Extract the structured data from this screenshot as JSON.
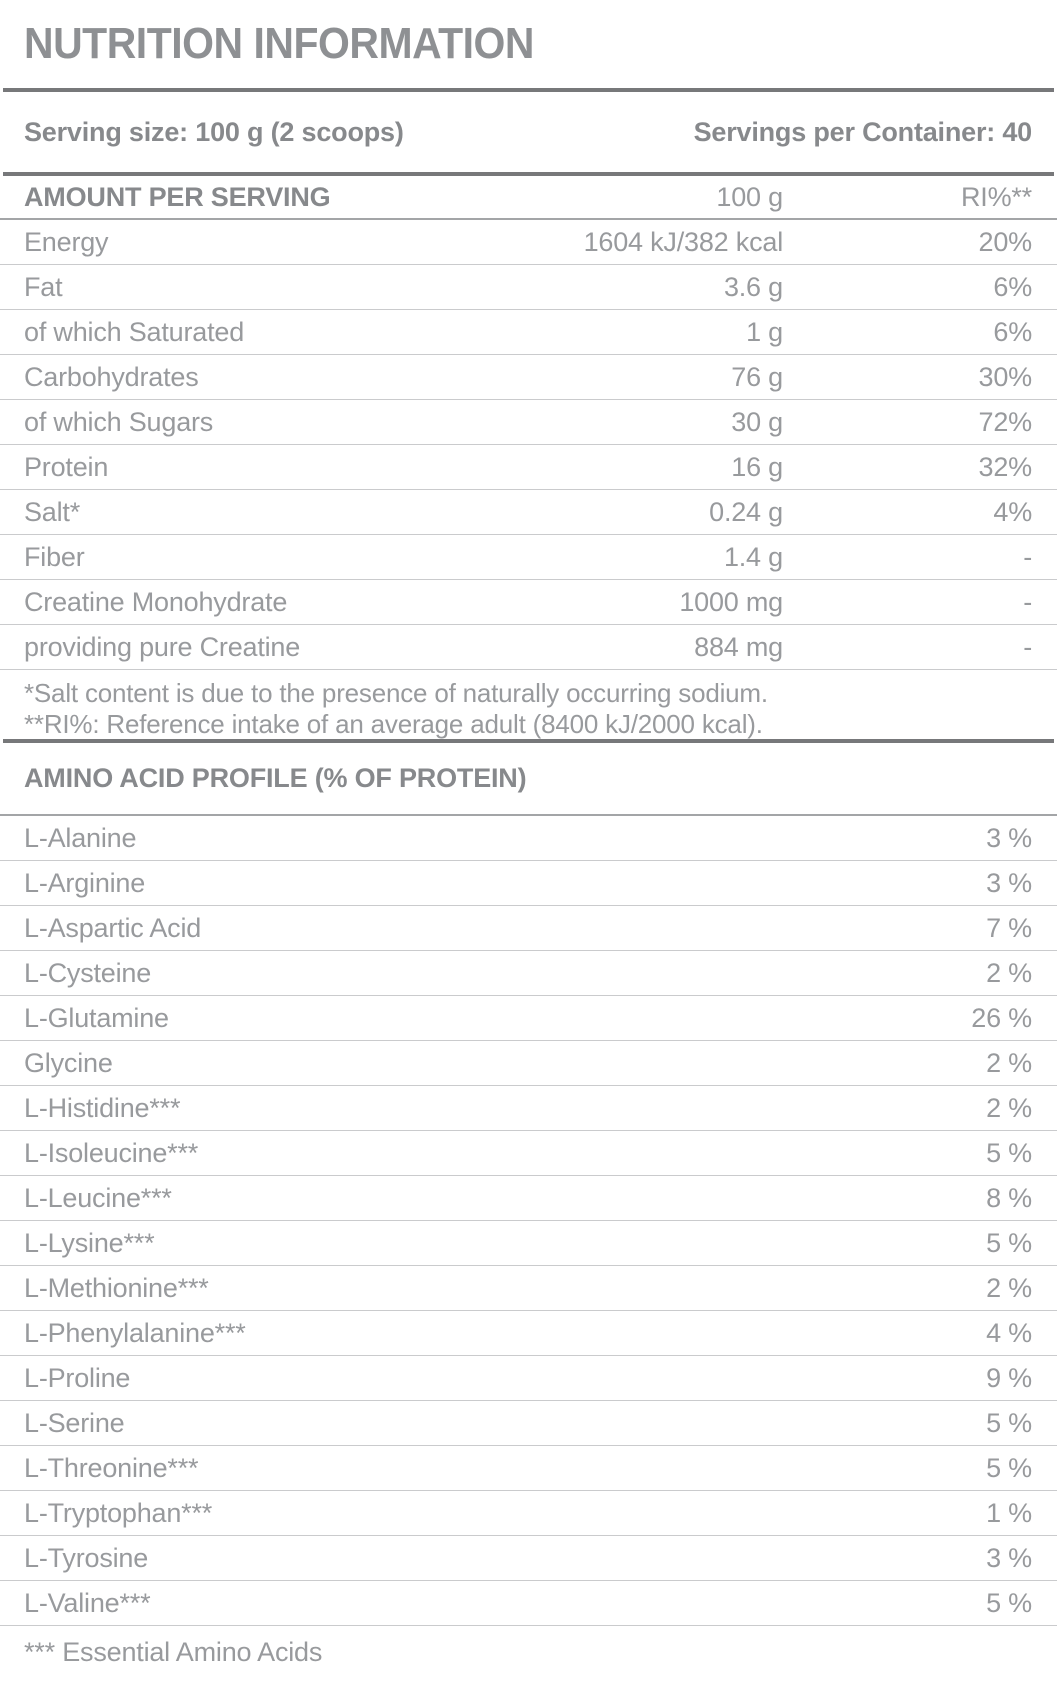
{
  "title": "NUTRITION INFORMATION",
  "serving": {
    "size_label": "Serving size: 100 g (2 scoops)",
    "per_container_label": "Servings per Container: 40"
  },
  "nutrition": {
    "header": {
      "col1": "AMOUNT PER SERVING",
      "col2": "100 g",
      "col3": "RI%**"
    },
    "rows": [
      {
        "label": "Energy",
        "amount": "1604 kJ/382 kcal",
        "ri": "20%"
      },
      {
        "label": "Fat",
        "amount": "3.6 g",
        "ri": "6%"
      },
      {
        "label": "of which Saturated",
        "amount": "1 g",
        "ri": "6%"
      },
      {
        "label": "Carbohydrates",
        "amount": "76 g",
        "ri": "30%"
      },
      {
        "label": "of which Sugars",
        "amount": "30 g",
        "ri": "72%"
      },
      {
        "label": "Protein",
        "amount": "16 g",
        "ri": "32%"
      },
      {
        "label": "Salt*",
        "amount": "0.24 g",
        "ri": "4%"
      },
      {
        "label": "Fiber",
        "amount": "1.4 g",
        "ri": "-"
      },
      {
        "label": "Creatine Monohydrate",
        "amount": "1000 mg",
        "ri": "-"
      },
      {
        "label": "providing pure Creatine",
        "amount": "884 mg",
        "ri": "-"
      }
    ],
    "footnotes": [
      "*Salt content is due to the presence of naturally occurring sodium.",
      "**RI%: Reference intake of an average adult (8400 kJ/2000 kcal)."
    ]
  },
  "amino": {
    "header": "AMINO ACID PROFILE (% OF PROTEIN)",
    "rows": [
      {
        "label": "L-Alanine",
        "value": "3 %"
      },
      {
        "label": "L-Arginine",
        "value": "3 %"
      },
      {
        "label": "L-Aspartic Acid",
        "value": "7 %"
      },
      {
        "label": "L-Cysteine",
        "value": "2 %"
      },
      {
        "label": "L-Glutamine",
        "value": "26 %"
      },
      {
        "label": "Glycine",
        "value": "2 %"
      },
      {
        "label": "L-Histidine***",
        "value": "2 %"
      },
      {
        "label": "L-Isoleucine***",
        "value": "5 %"
      },
      {
        "label": "L-Leucine***",
        "value": "8 %"
      },
      {
        "label": "L-Lysine***",
        "value": "5 %"
      },
      {
        "label": "L-Methionine***",
        "value": "2 %"
      },
      {
        "label": "L-Phenylalanine***",
        "value": "4 %"
      },
      {
        "label": "L-Proline",
        "value": "9 %"
      },
      {
        "label": "L-Serine",
        "value": "5 %"
      },
      {
        "label": "L-Threonine***",
        "value": "5 %"
      },
      {
        "label": "L-Tryptophan***",
        "value": "1 %"
      },
      {
        "label": "L-Tyrosine",
        "value": "3 %"
      },
      {
        "label": "L-Valine***",
        "value": "5 %"
      }
    ],
    "footer": "*** Essential Amino Acids"
  },
  "colors": {
    "text": "#989a9d",
    "text_bold": "#87898c",
    "rule_thick": "#77787a",
    "rule_medium": "#a3a5a7",
    "rule_thin": "#cacbcd"
  }
}
